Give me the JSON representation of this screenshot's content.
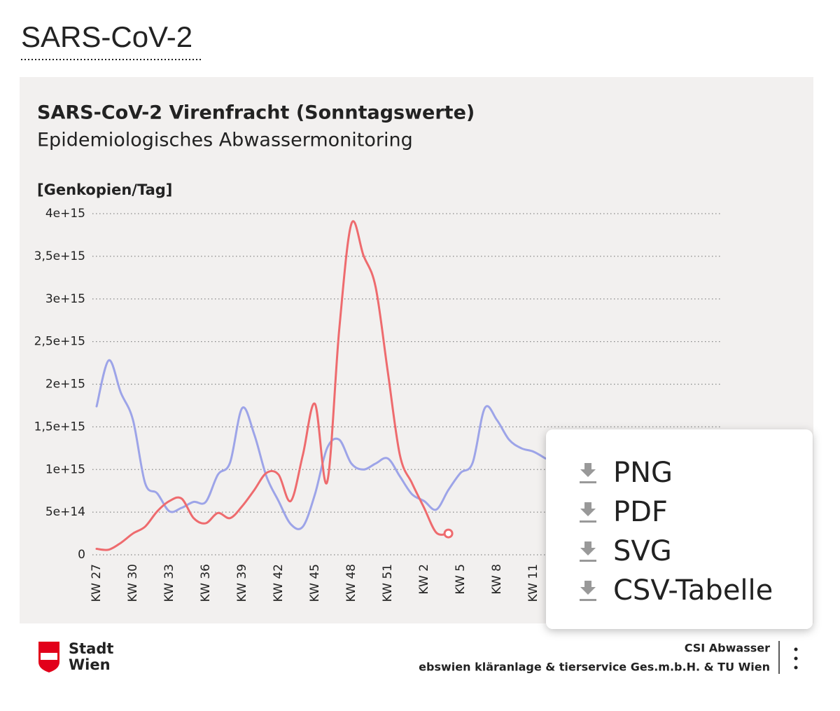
{
  "page_heading": "SARS-CoV-2",
  "chart_data": {
    "type": "line",
    "title": "SARS-CoV-2 Virenfracht (Sonntagswerte)",
    "subtitle": "Epidemiologisches Abwassermonitoring",
    "y_label": "[Genkopien/Tag]",
    "categories": [
      "KW 27",
      null,
      null,
      "KW 30",
      null,
      null,
      "KW 33",
      null,
      null,
      "KW 36",
      null,
      null,
      "KW 39",
      null,
      null,
      "KW 42",
      null,
      null,
      "KW 45",
      null,
      null,
      "KW 48",
      null,
      null,
      "KW 51",
      null,
      null,
      "KW 2",
      null,
      null,
      "KW 5",
      null,
      null,
      "KW 8",
      null,
      null,
      "KW 11",
      null
    ],
    "series": [
      {
        "color": "#9da4e8",
        "values": [
          1740000000000000.0,
          2280000000000000.0,
          1900000000000000.0,
          1580000000000000.0,
          840000000000000.0,
          720000000000000.0,
          510000000000000.0,
          550000000000000.0,
          620000000000000.0,
          620000000000000.0,
          940000000000000.0,
          1080000000000000.0,
          1720000000000000.0,
          1410000000000000.0,
          920000000000000.0,
          630000000000000.0,
          360000000000000.0,
          330000000000000.0,
          710000000000000.0,
          1250000000000000.0,
          1350000000000000.0,
          1070000000000000.0,
          1000000000000000.0,
          1070000000000000.0,
          1130000000000000.0,
          920000000000000.0,
          710000000000000.0,
          630000000000000.0,
          530000000000000.0,
          760000000000000.0,
          960000000000000.0,
          1080000000000000.0,
          1720000000000000.0,
          1580000000000000.0,
          1350000000000000.0,
          1250000000000000.0,
          1210000000000000.0,
          1130000000000000.0
        ]
      },
      {
        "color": "#ee6b6e",
        "values": [
          70000000000000.0,
          60000000000000.0,
          140000000000000.0,
          250000000000000.0,
          330000000000000.0,
          510000000000000.0,
          630000000000000.0,
          660000000000000.0,
          430000000000000.0,
          370000000000000.0,
          490000000000000.0,
          430000000000000.0,
          570000000000000.0,
          760000000000000.0,
          960000000000000.0,
          940000000000000.0,
          630000000000000.0,
          1170000000000000.0,
          1770000000000000.0,
          850000000000000.0,
          2640000000000000.0,
          3880000000000000.0,
          3510000000000000.0,
          3140000000000000.0,
          2150000000000000.0,
          1170000000000000.0,
          840000000000000.0,
          550000000000000.0,
          260000000000000.0,
          250000000000000.0,
          null,
          null,
          null,
          null,
          null,
          null,
          null,
          null
        ]
      }
    ],
    "ylim": [
      0,
      4000000000000000.0
    ],
    "yticks": [
      0,
      {
        "value": 500000000000000.0,
        "label": "5e+14"
      },
      {
        "value": 1000000000000000.0,
        "label": "1e+15"
      },
      {
        "value": 1500000000000000.0,
        "label": "1,5e+15"
      },
      {
        "value": 2000000000000000.0,
        "label": "2e+15"
      },
      {
        "value": 2500000000000000.0,
        "label": "2,5e+15"
      },
      {
        "value": 3000000000000000.0,
        "label": "3e+15"
      },
      {
        "value": 3500000000000000.0,
        "label": "3,5e+15"
      },
      {
        "value": 4000000000000000.0,
        "label": "4e+15"
      }
    ],
    "grid": true
  },
  "export_menu": [
    "PNG",
    "PDF",
    "SVG",
    "CSV-Tabelle"
  ],
  "footer": {
    "logo": [
      "Stadt",
      "Wien"
    ],
    "credits": [
      "CSI Abwasser",
      "ebswien kläranlage & tierservice Ges.m.b.H. & TU Wien"
    ]
  }
}
